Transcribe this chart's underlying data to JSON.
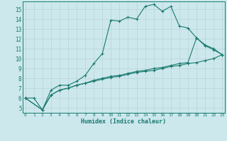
{
  "title": "",
  "xlabel": "Humidex (Indice chaleur)",
  "bg_color": "#cce8ed",
  "line_color": "#1a7a6e",
  "grid_color": "#b8d4d8",
  "ylim": [
    4.5,
    15.8
  ],
  "xlim": [
    -0.3,
    23.3
  ],
  "yticks": [
    5,
    6,
    7,
    8,
    9,
    10,
    11,
    12,
    13,
    14,
    15
  ],
  "xticks": [
    0,
    1,
    2,
    3,
    4,
    5,
    6,
    7,
    8,
    9,
    10,
    11,
    12,
    13,
    14,
    15,
    16,
    17,
    18,
    19,
    20,
    21,
    22,
    23
  ],
  "line1_x": [
    0,
    1,
    2,
    3,
    4,
    5,
    6,
    7,
    8,
    9,
    10,
    11,
    12,
    13,
    14,
    15,
    16,
    17,
    18,
    19,
    20,
    21,
    22,
    23
  ],
  "line1_y": [
    6.0,
    6.0,
    4.8,
    6.8,
    7.3,
    7.3,
    7.7,
    8.3,
    9.5,
    10.5,
    13.9,
    13.8,
    14.2,
    14.0,
    15.3,
    15.5,
    14.8,
    15.3,
    13.3,
    13.1,
    12.1,
    11.4,
    11.0,
    10.4
  ],
  "line1_markers_x": [
    0,
    2,
    3,
    4,
    5,
    6,
    7,
    8,
    9,
    10,
    11,
    12,
    13,
    14,
    15,
    16,
    17,
    18,
    19,
    20,
    21,
    22,
    23
  ],
  "line2_x": [
    0,
    2,
    3,
    4,
    5,
    6,
    7,
    8,
    9,
    10,
    11,
    12,
    13,
    14,
    15,
    16,
    17,
    18,
    19,
    20,
    21,
    22,
    23
  ],
  "line2_y": [
    6.0,
    4.8,
    6.3,
    6.8,
    7.0,
    7.3,
    7.5,
    7.8,
    8.0,
    8.2,
    8.3,
    8.5,
    8.7,
    8.8,
    9.0,
    9.1,
    9.3,
    9.5,
    9.6,
    12.1,
    11.3,
    10.9,
    10.4
  ],
  "line3_x": [
    0,
    2,
    3,
    4,
    5,
    6,
    7,
    8,
    9,
    10,
    11,
    12,
    13,
    14,
    15,
    16,
    17,
    18,
    19,
    20,
    21,
    22,
    23
  ],
  "line3_y": [
    6.0,
    4.8,
    6.3,
    6.8,
    7.0,
    7.3,
    7.5,
    7.7,
    7.9,
    8.1,
    8.2,
    8.4,
    8.6,
    8.7,
    8.8,
    9.0,
    9.2,
    9.3,
    9.5,
    9.6,
    9.8,
    10.0,
    10.4
  ]
}
